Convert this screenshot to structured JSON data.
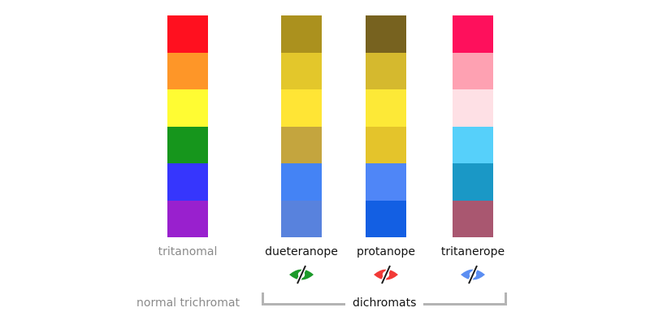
{
  "columns": [
    {
      "label": "tritanomal",
      "label_color": "#8a8a8a",
      "icon": null,
      "swatches": [
        "#ff101f",
        "#fe9628",
        "#fffc33",
        "#16961c",
        "#3636fd",
        "#9920ce"
      ]
    },
    {
      "label": "dueteranope",
      "label_color": "#111111",
      "icon": "eye-slash-icon",
      "icon_color": "#1c9a2a",
      "swatches": [
        "#ab911e",
        "#e3c72b",
        "#ffe535",
        "#c4a53e",
        "#4483f5",
        "#5882dd"
      ]
    },
    {
      "label": "protanope",
      "label_color": "#111111",
      "icon": "eye-slash-icon",
      "icon_color": "#f23a37",
      "swatches": [
        "#77621f",
        "#d5b92e",
        "#fde937",
        "#e4c42b",
        "#4f86f7",
        "#135fe3"
      ]
    },
    {
      "label": "tritanerope",
      "label_color": "#111111",
      "icon": "eye-slash-icon",
      "icon_color": "#5b8ef2",
      "swatches": [
        "#fe105c",
        "#fea1b2",
        "#fee0e5",
        "#56d0fa",
        "#1a98c6",
        "#a95770"
      ]
    }
  ],
  "groups": {
    "normal": {
      "label": "normal trichromat",
      "color": "#8a8a8a"
    },
    "dichromats": {
      "label": "dichromats",
      "color": "#111111"
    }
  },
  "bracket_color": "#b4b4b4"
}
